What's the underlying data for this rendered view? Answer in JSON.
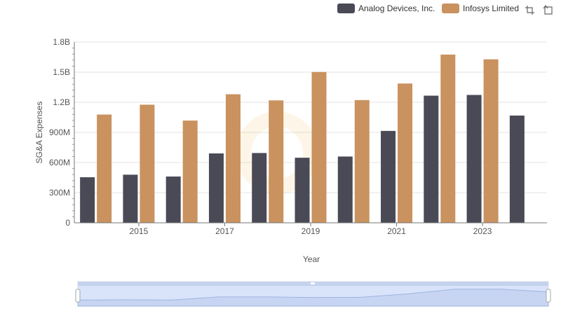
{
  "toolbar": {
    "icons": [
      "crop-zoom-icon",
      "restore-icon"
    ]
  },
  "chart_data": {
    "type": "bar",
    "title": "",
    "xlabel": "Year",
    "ylabel": "SG&A Expenses",
    "categories": [
      "2014",
      "2015",
      "2016",
      "2017",
      "2018",
      "2019",
      "2020",
      "2021",
      "2022",
      "2023",
      "2024"
    ],
    "x_tick_labels": [
      "2015",
      "2017",
      "2019",
      "2021",
      "2023"
    ],
    "y_tick_labels": [
      "0",
      "300M",
      "600M",
      "900M",
      "1.2B",
      "1.5B",
      "1.8B"
    ],
    "y_ticks": [
      0,
      300000000,
      600000000,
      900000000,
      1200000000,
      1500000000,
      1800000000
    ],
    "ylim": [
      0,
      1800000000
    ],
    "grid": true,
    "legend_position": "top-right",
    "series": [
      {
        "name": "Analog Devices, Inc.",
        "color": "#4a4a57",
        "values": [
          454000000,
          479000000,
          461000000,
          691000000,
          695000000,
          648000000,
          660000000,
          915000000,
          1266000000,
          1273000000,
          1068000000
        ]
      },
      {
        "name": "Infosys Limited",
        "color": "#c9925f",
        "values": [
          1078000000,
          1176000000,
          1018000000,
          1280000000,
          1219000000,
          1502000000,
          1222000000,
          1387000000,
          1675000000,
          1628000000,
          null
        ]
      }
    ]
  }
}
